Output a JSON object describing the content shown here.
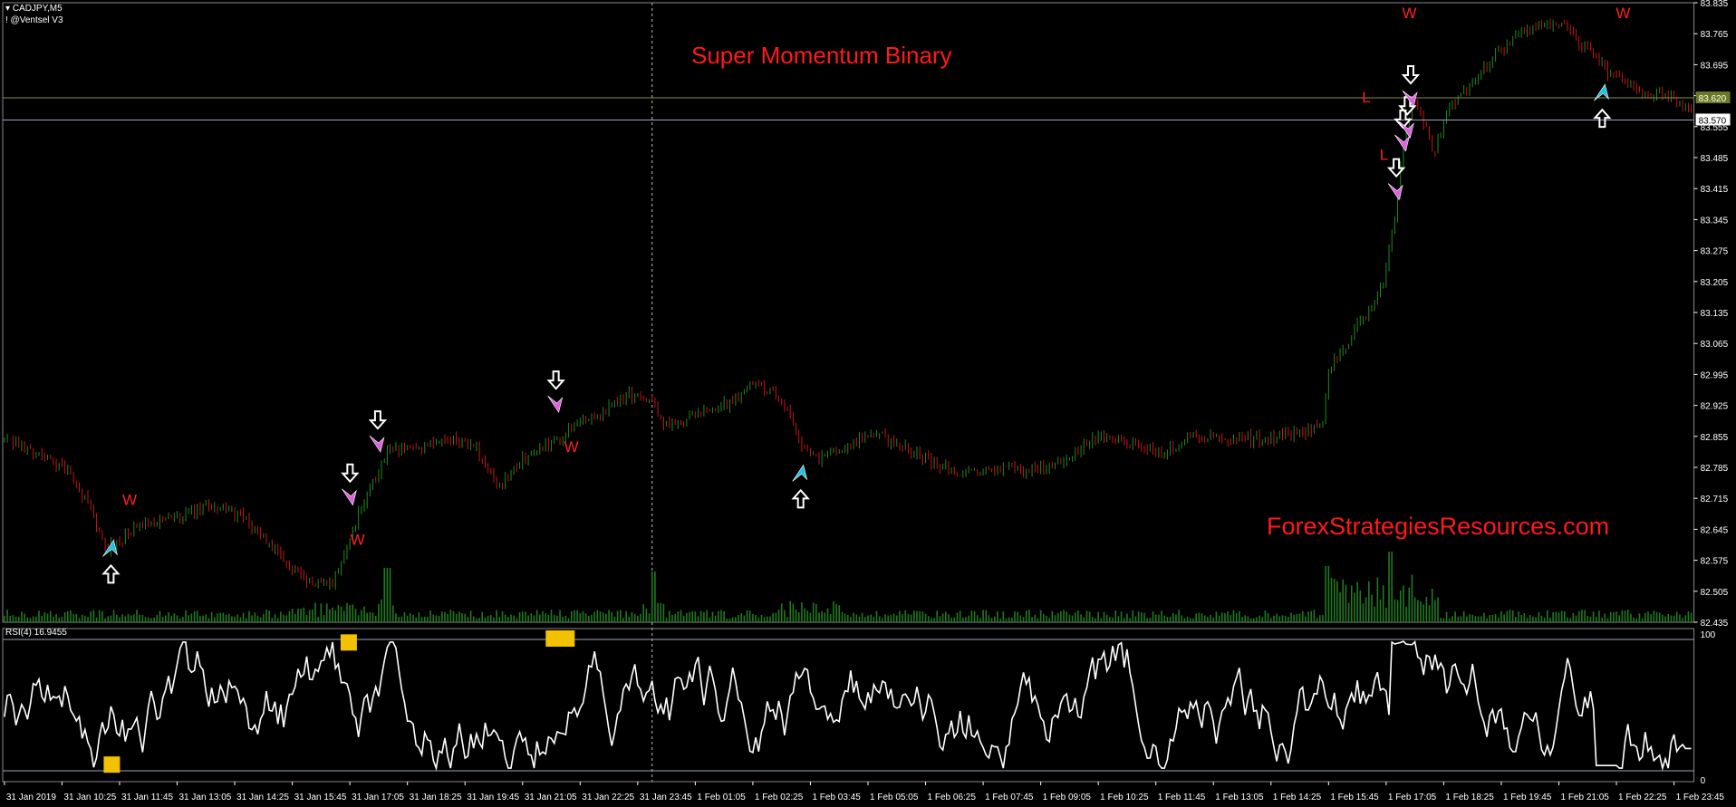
{
  "header": {
    "symbol": "CADJPY,M5",
    "indicator": "! @Ventsel V3",
    "rsi_label": "RSI(4) 16.9455"
  },
  "title": "Super Momentum Binary",
  "watermark": "ForexStrategiesResources.com",
  "colors": {
    "background": "#000000",
    "bull_candle": "#1f8a1f",
    "bear_candle": "#c81414",
    "volume": "#1f7a1f",
    "rsi_line": "#ffffff",
    "title": "#ff1a1a",
    "buy_arrow": "#20c0e0",
    "sell_arrow": "#e060e0",
    "level_line": "#9aa5b8",
    "price_marker_green": "#6a7a25"
  },
  "price_axis": {
    "labels": [
      "83.835",
      "83.765",
      "83.695",
      "83.625",
      "83.555",
      "83.485",
      "83.415",
      "83.345",
      "83.275",
      "83.205",
      "83.135",
      "83.065",
      "82.995",
      "82.925",
      "82.855",
      "82.785",
      "82.715",
      "82.645",
      "82.575",
      "82.505",
      "82.435"
    ],
    "markers": [
      {
        "text": "83.620",
        "kind": "green"
      },
      {
        "text": "83.570",
        "kind": "white"
      }
    ]
  },
  "rsi_axis": {
    "labels": [
      "100",
      "0"
    ]
  },
  "time_axis": {
    "labels": [
      "31 Jan 2019",
      "31 Jan 10:25",
      "31 Jan 11:45",
      "31 Jan 13:05",
      "31 Jan 14:25",
      "31 Jan 15:45",
      "31 Jan 17:05",
      "31 Jan 18:25",
      "31 Jan 19:45",
      "31 Jan 21:05",
      "31 Jan 22:25",
      "31 Jan 23:45",
      "1 Feb 01:05",
      "1 Feb 02:25",
      "1 Feb 03:45",
      "1 Feb 05:05",
      "1 Feb 06:25",
      "1 Feb 07:45",
      "1 Feb 09:05",
      "1 Feb 10:25",
      "1 Feb 11:45",
      "1 Feb 13:05",
      "1 Feb 14:25",
      "1 Feb 15:45",
      "1 Feb 17:05",
      "1 Feb 18:25",
      "1 Feb 19:45",
      "1 Feb 21:05",
      "1 Feb 22:25",
      "1 Feb 23:45"
    ]
  },
  "signal_labels": {
    "win": "W",
    "loss": "L"
  },
  "chart_data": {
    "type": "candlestick",
    "symbol": "CADJPY",
    "timeframe": "M5",
    "ylim": [
      82.435,
      83.835
    ],
    "close_path": [
      [
        0,
        82.85
      ],
      [
        30,
        82.82
      ],
      [
        60,
        82.78
      ],
      [
        80,
        82.7
      ],
      [
        95,
        82.6
      ],
      [
        110,
        82.62
      ],
      [
        130,
        82.66
      ],
      [
        160,
        82.67
      ],
      [
        190,
        82.7
      ],
      [
        215,
        82.68
      ],
      [
        240,
        82.62
      ],
      [
        260,
        82.56
      ],
      [
        280,
        82.53
      ],
      [
        300,
        82.52
      ],
      [
        315,
        82.62
      ],
      [
        330,
        82.72
      ],
      [
        350,
        82.82
      ],
      [
        380,
        82.83
      ],
      [
        410,
        82.85
      ],
      [
        430,
        82.83
      ],
      [
        450,
        82.74
      ],
      [
        470,
        82.8
      ],
      [
        500,
        82.84
      ],
      [
        520,
        82.88
      ],
      [
        545,
        82.91
      ],
      [
        570,
        82.95
      ],
      [
        590,
        82.94
      ],
      [
        600,
        82.88
      ],
      [
        630,
        82.9
      ],
      [
        660,
        82.93
      ],
      [
        680,
        82.98
      ],
      [
        700,
        82.95
      ],
      [
        715,
        82.9
      ],
      [
        725,
        82.83
      ],
      [
        740,
        82.8
      ],
      [
        760,
        82.83
      ],
      [
        790,
        82.86
      ],
      [
        810,
        82.84
      ],
      [
        840,
        82.8
      ],
      [
        870,
        82.77
      ],
      [
        900,
        82.78
      ],
      [
        930,
        82.78
      ],
      [
        960,
        82.8
      ],
      [
        990,
        82.85
      ],
      [
        1020,
        82.84
      ],
      [
        1050,
        82.82
      ],
      [
        1080,
        82.86
      ],
      [
        1110,
        82.85
      ],
      [
        1140,
        82.85
      ],
      [
        1170,
        82.86
      ],
      [
        1195,
        82.88
      ],
      [
        1200,
        83.0
      ],
      [
        1215,
        83.06
      ],
      [
        1230,
        83.12
      ],
      [
        1250,
        83.2
      ],
      [
        1260,
        83.35
      ],
      [
        1268,
        83.52
      ],
      [
        1276,
        83.62
      ],
      [
        1285,
        83.57
      ],
      [
        1295,
        83.5
      ],
      [
        1310,
        83.6
      ],
      [
        1330,
        83.65
      ],
      [
        1350,
        83.72
      ],
      [
        1370,
        83.76
      ],
      [
        1390,
        83.78
      ],
      [
        1410,
        83.79
      ],
      [
        1425,
        83.75
      ],
      [
        1440,
        83.72
      ],
      [
        1455,
        83.67
      ],
      [
        1470,
        83.65
      ],
      [
        1490,
        83.63
      ],
      [
        1510,
        83.62
      ],
      [
        1530,
        83.58
      ]
    ],
    "rsi": {
      "ylim": [
        0,
        100
      ],
      "levels": [
        0,
        100
      ],
      "last": 16.9455
    },
    "events": [
      {
        "type": "buy",
        "x": 101,
        "p": 82.6
      },
      {
        "type": "sell",
        "x": 317,
        "p": 82.72
      },
      {
        "type": "sell",
        "x": 342,
        "p": 82.84
      },
      {
        "type": "sell",
        "x": 503,
        "p": 82.93
      },
      {
        "type": "buy",
        "x": 724,
        "p": 82.77
      },
      {
        "type": "sell",
        "x": 1262,
        "p": 83.41
      },
      {
        "type": "sell",
        "x": 1268,
        "p": 83.52
      },
      {
        "type": "sell",
        "x": 1272,
        "p": 83.55
      },
      {
        "type": "sell",
        "x": 1275,
        "p": 83.62
      },
      {
        "type": "buy",
        "x": 1448,
        "p": 83.63
      }
    ],
    "labels": [
      {
        "text": "W",
        "x": 117,
        "p": 82.7
      },
      {
        "text": "W",
        "x": 323,
        "p": 82.61
      },
      {
        "text": "W",
        "x": 516,
        "p": 82.82
      },
      {
        "text": "W",
        "x": 1273,
        "p": 83.8
      },
      {
        "text": "W",
        "x": 1466,
        "p": 83.8
      },
      {
        "text": "L",
        "x": 1234,
        "p": 83.61
      },
      {
        "text": "L",
        "x": 1250,
        "p": 83.48
      }
    ]
  }
}
